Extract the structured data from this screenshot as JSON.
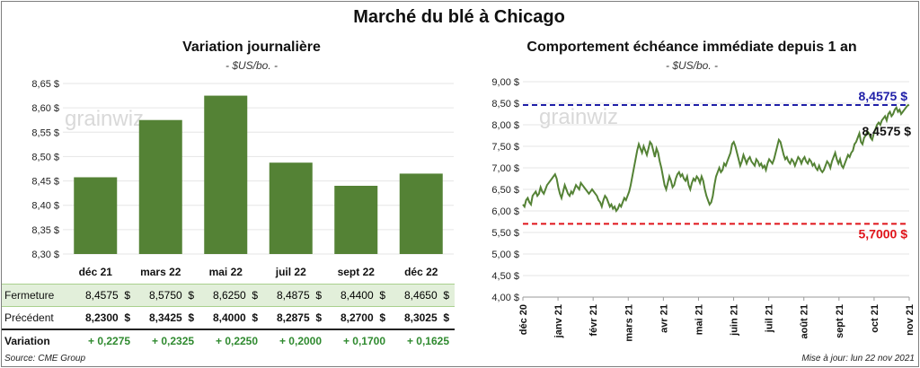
{
  "title": "Marché du blé à Chicago",
  "left_chart": {
    "title": "Variation  journalière",
    "subtitle": "- $US/bo. -",
    "watermark": "grainwiz",
    "chart_data": {
      "type": "bar",
      "categories": [
        "déc 21",
        "mars 22",
        "mai 22",
        "juil 22",
        "sept 22",
        "déc 22"
      ],
      "values": [
        8.4575,
        8.575,
        8.625,
        8.4875,
        8.44,
        8.465
      ],
      "ylim": [
        8.3,
        8.65
      ],
      "yticks": [
        8.3,
        8.35,
        8.4,
        8.45,
        8.5,
        8.55,
        8.6,
        8.65
      ],
      "ytick_labels": [
        "8,30 $",
        "8,35 $",
        "8,40 $",
        "8,45 $",
        "8,50 $",
        "8,55 $",
        "8,60 $",
        "8,65 $"
      ],
      "bar_color": "#548235"
    }
  },
  "table": {
    "rows": [
      {
        "label": "Fermeture",
        "values": [
          "8,4575",
          "8,5750",
          "8,6250",
          "8,4875",
          "8,4400",
          "8,4650"
        ],
        "unit": "$"
      },
      {
        "label": "Précédent",
        "values": [
          "8,2300",
          "8,3425",
          "8,4000",
          "8,2875",
          "8,2700",
          "8,3025"
        ],
        "unit": "$"
      },
      {
        "label": "Variation",
        "values": [
          "+ 0,2275",
          "+ 0,2325",
          "+ 0,2250",
          "+ 0,2000",
          "+ 0,1700",
          "+ 0,1625"
        ],
        "unit": ""
      }
    ]
  },
  "right_chart": {
    "title": "Comportement  échéance immédiate depuis 1 an",
    "subtitle": "- $US/bo. -",
    "watermark": "grainwiz",
    "chart_data": {
      "type": "line",
      "ylim": [
        4.0,
        9.0
      ],
      "yticks": [
        4.0,
        4.5,
        5.0,
        5.5,
        6.0,
        6.5,
        7.0,
        7.5,
        8.0,
        8.5,
        9.0
      ],
      "ytick_labels": [
        "4,00 $",
        "4,50 $",
        "5,00 $",
        "5,50 $",
        "6,00 $",
        "6,50 $",
        "7,00 $",
        "7,50 $",
        "8,00 $",
        "8,50 $",
        "9,00 $"
      ],
      "x_tick_labels": [
        "déc 20",
        "janv 21",
        "févr 21",
        "mars 21",
        "avr 21",
        "mai 21",
        "juin 21",
        "juil 21",
        "août 21",
        "sept 21",
        "oct 21",
        "nov 21"
      ],
      "x_index_range": [
        0,
        250
      ],
      "series": [
        {
          "name": "Échéance immédiate",
          "color": "#548235",
          "values": [
            6.15,
            6.1,
            6.25,
            6.3,
            6.2,
            6.15,
            6.35,
            6.4,
            6.45,
            6.35,
            6.4,
            6.55,
            6.45,
            6.4,
            6.5,
            6.6,
            6.65,
            6.7,
            6.75,
            6.8,
            6.85,
            6.75,
            6.55,
            6.4,
            6.3,
            6.45,
            6.6,
            6.5,
            6.4,
            6.35,
            6.45,
            6.4,
            6.5,
            6.6,
            6.55,
            6.5,
            6.65,
            6.6,
            6.55,
            6.5,
            6.45,
            6.4,
            6.45,
            6.5,
            6.45,
            6.4,
            6.35,
            6.25,
            6.2,
            6.1,
            6.25,
            6.35,
            6.3,
            6.2,
            6.1,
            6.15,
            6.05,
            6.1,
            6.0,
            6.05,
            6.15,
            6.1,
            6.2,
            6.3,
            6.25,
            6.35,
            6.45,
            6.6,
            6.8,
            7.0,
            7.2,
            7.4,
            7.55,
            7.45,
            7.35,
            7.5,
            7.4,
            7.3,
            7.45,
            7.6,
            7.55,
            7.4,
            7.25,
            7.45,
            7.35,
            7.15,
            7.0,
            6.8,
            6.6,
            6.5,
            6.65,
            6.8,
            6.7,
            6.55,
            6.6,
            6.75,
            6.85,
            6.9,
            6.8,
            6.85,
            6.75,
            6.7,
            6.8,
            6.6,
            6.5,
            6.65,
            6.75,
            6.7,
            6.8,
            6.75,
            6.65,
            6.8,
            6.7,
            6.5,
            6.35,
            6.25,
            6.15,
            6.2,
            6.35,
            6.6,
            6.8,
            6.9,
            7.0,
            6.9,
            6.95,
            7.1,
            7.05,
            7.15,
            7.25,
            7.35,
            7.55,
            7.6,
            7.5,
            7.35,
            7.2,
            7.05,
            7.15,
            7.3,
            7.2,
            7.1,
            7.2,
            7.25,
            7.15,
            7.1,
            7.05,
            7.2,
            7.15,
            7.05,
            7.1,
            7.0,
            7.05,
            6.95,
            7.1,
            7.2,
            7.15,
            7.1,
            7.2,
            7.35,
            7.5,
            7.65,
            7.6,
            7.45,
            7.3,
            7.2,
            7.25,
            7.15,
            7.1,
            7.2,
            7.15,
            7.05,
            7.15,
            7.25,
            7.2,
            7.1,
            7.2,
            7.25,
            7.15,
            7.1,
            7.2,
            7.15,
            7.05,
            7.1,
            7.0,
            6.95,
            7.05,
            6.95,
            6.9,
            6.95,
            7.05,
            7.15,
            7.1,
            7.0,
            7.15,
            7.25,
            7.35,
            7.2,
            7.1,
            7.2,
            7.05,
            7.0,
            7.1,
            7.2,
            7.3,
            7.25,
            7.35,
            7.4,
            7.55,
            7.6,
            7.7,
            7.8,
            7.6,
            7.55,
            7.7,
            7.75,
            7.85,
            7.8,
            7.7,
            7.65,
            7.8,
            7.9,
            8.0,
            8.05,
            8.0,
            8.1,
            8.15,
            8.2,
            8.1,
            8.25,
            8.3,
            8.2,
            8.25,
            8.35,
            8.4,
            8.3,
            8.35,
            8.25,
            8.3,
            8.35,
            8.4,
            8.45,
            8.4575
          ]
        }
      ],
      "reference_lines": [
        {
          "value": 8.4575,
          "label": "8,4575 $",
          "color": "#1f1fa8",
          "style": "dashed"
        },
        {
          "value": 5.7,
          "label": "5,7000 $",
          "color": "#e0141a",
          "style": "dashed"
        }
      ],
      "last_value_label": "8,4575 $"
    }
  },
  "footer": {
    "source": "Source: CME Group",
    "updated": "Mise à jour: lun 22 nov 2021"
  }
}
